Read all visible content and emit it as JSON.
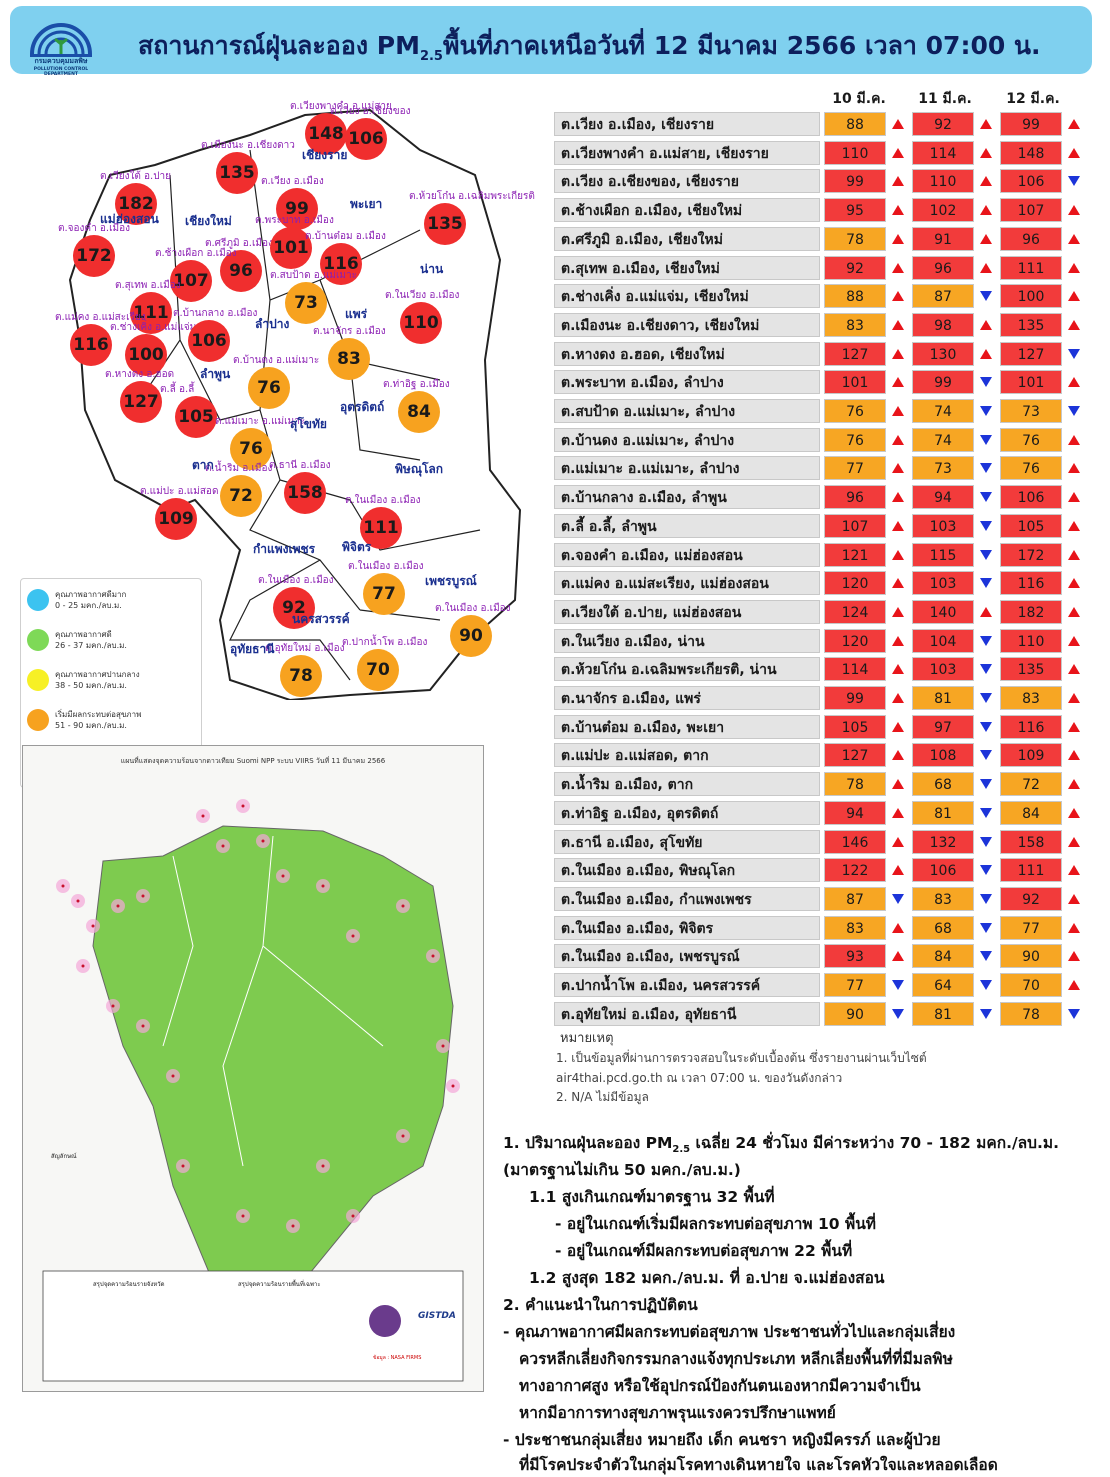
{
  "header": {
    "title_pre": "สถานการณ์ฝุ่นละออง PM",
    "title_sub": "2.5",
    "title_post": "พื้นที่ภาคเหนือวันที่ 12 มีนาคม 2566 เวลา 07:00 น.",
    "agency": "กรมควบคุมมลพิษ",
    "agency_en": "POLLUTION CONTROL DEPARTMENT"
  },
  "columns": [
    "10 มี.ค.",
    "11 มี.ค.",
    "12 มี.ค."
  ],
  "colors": {
    "red": "#f23b3b",
    "orange": "#f7a623",
    "up": "#e8141a",
    "down": "#1c34d9",
    "header": "#7fd0ef"
  },
  "stations": [
    {
      "name": "ต.เวียง อ.เมือง, เชียงราย",
      "d10": 88,
      "a10": "up",
      "d11": 92,
      "a11": "up",
      "d12": 99,
      "a12": "up"
    },
    {
      "name": "ต.เวียงพางคำ อ.แม่สาย, เชียงราย",
      "d10": 110,
      "a10": "up",
      "d11": 114,
      "a11": "up",
      "d12": 148,
      "a12": "up"
    },
    {
      "name": "ต.เวียง อ.เชียงของ, เชียงราย",
      "d10": 99,
      "a10": "up",
      "d11": 110,
      "a11": "up",
      "d12": 106,
      "a12": "down"
    },
    {
      "name": "ต.ช้างเผือก อ.เมือง, เชียงใหม่",
      "d10": 95,
      "a10": "up",
      "d11": 102,
      "a11": "up",
      "d12": 107,
      "a12": "up"
    },
    {
      "name": "ต.ศรีภูมิ อ.เมือง, เชียงใหม่",
      "d10": 78,
      "a10": "up",
      "d11": 91,
      "a11": "up",
      "d12": 96,
      "a12": "up"
    },
    {
      "name": "ต.สุเทพ อ.เมือง, เชียงใหม่",
      "d10": 92,
      "a10": "up",
      "d11": 96,
      "a11": "up",
      "d12": 111,
      "a12": "up"
    },
    {
      "name": "ต.ช่างเคิ่ง อ.แม่แจ่ม, เชียงใหม่",
      "d10": 88,
      "a10": "up",
      "d11": 87,
      "a11": "down",
      "d12": 100,
      "a12": "up"
    },
    {
      "name": "ต.เมืองนะ อ.เชียงดาว, เชียงใหม่",
      "d10": 83,
      "a10": "up",
      "d11": 98,
      "a11": "up",
      "d12": 135,
      "a12": "up"
    },
    {
      "name": "ต.หางดง อ.ฮอด, เชียงใหม่",
      "d10": 127,
      "a10": "up",
      "d11": 130,
      "a11": "up",
      "d12": 127,
      "a12": "down"
    },
    {
      "name": "ต.พระบาท อ.เมือง, ลำปาง",
      "d10": 101,
      "a10": "up",
      "d11": 99,
      "a11": "down",
      "d12": 101,
      "a12": "up"
    },
    {
      "name": "ต.สบป้าด อ.แม่เมาะ, ลำปาง",
      "d10": 76,
      "a10": "up",
      "d11": 74,
      "a11": "down",
      "d12": 73,
      "a12": "down"
    },
    {
      "name": "ต.บ้านดง อ.แม่เมาะ, ลำปาง",
      "d10": 76,
      "a10": "up",
      "d11": 74,
      "a11": "down",
      "d12": 76,
      "a12": "up"
    },
    {
      "name": "ต.แม่เมาะ อ.แม่เมาะ, ลำปาง",
      "d10": 77,
      "a10": "up",
      "d11": 73,
      "a11": "down",
      "d12": 76,
      "a12": "up"
    },
    {
      "name": "ต.บ้านกลาง อ.เมือง, ลำพูน",
      "d10": 96,
      "a10": "up",
      "d11": 94,
      "a11": "down",
      "d12": 106,
      "a12": "up"
    },
    {
      "name": "ต.ลี้ อ.ลี้, ลำพูน",
      "d10": 107,
      "a10": "up",
      "d11": 103,
      "a11": "down",
      "d12": 105,
      "a12": "up"
    },
    {
      "name": "ต.จองคำ อ.เมือง, แม่ฮ่องสอน",
      "d10": 121,
      "a10": "up",
      "d11": 115,
      "a11": "down",
      "d12": 172,
      "a12": "up"
    },
    {
      "name": "ต.แม่คง อ.แม่สะเรียง, แม่ฮ่องสอน",
      "d10": 120,
      "a10": "up",
      "d11": 103,
      "a11": "down",
      "d12": 116,
      "a12": "up"
    },
    {
      "name": "ต.เวียงใต้ อ.ปาย, แม่ฮ่องสอน",
      "d10": 124,
      "a10": "up",
      "d11": 140,
      "a11": "up",
      "d12": 182,
      "a12": "up"
    },
    {
      "name": "ต.ในเวียง อ.เมือง, น่าน",
      "d10": 120,
      "a10": "up",
      "d11": 104,
      "a11": "down",
      "d12": 110,
      "a12": "up"
    },
    {
      "name": "ต.ห้วยโก๋น อ.เฉลิมพระเกียรติ, น่าน",
      "d10": 114,
      "a10": "up",
      "d11": 103,
      "a11": "down",
      "d12": 135,
      "a12": "up"
    },
    {
      "name": "ต.นาจักร อ.เมือง, แพร่",
      "d10": 99,
      "a10": "up",
      "d11": 81,
      "a11": "down",
      "d12": 83,
      "a12": "up"
    },
    {
      "name": "ต.บ้านต๋อม อ.เมือง, พะเยา",
      "d10": 105,
      "a10": "up",
      "d11": 97,
      "a11": "down",
      "d12": 116,
      "a12": "up"
    },
    {
      "name": "ต.แม่ปะ อ.แม่สอด, ตาก",
      "d10": 127,
      "a10": "up",
      "d11": 108,
      "a11": "down",
      "d12": 109,
      "a12": "up"
    },
    {
      "name": "ต.น้ำริม อ.เมือง, ตาก",
      "d10": 78,
      "a10": "up",
      "d11": 68,
      "a11": "down",
      "d12": 72,
      "a12": "up"
    },
    {
      "name": "ต.ท่าอิฐ อ.เมือง, อุตรดิตถ์",
      "d10": 94,
      "a10": "up",
      "d11": 81,
      "a11": "down",
      "d12": 84,
      "a12": "up"
    },
    {
      "name": "ต.ธานี อ.เมือง, สุโขทัย",
      "d10": 146,
      "a10": "up",
      "d11": 132,
      "a11": "down",
      "d12": 158,
      "a12": "up"
    },
    {
      "name": "ต.ในเมือง อ.เมือง, พิษณุโลก",
      "d10": 122,
      "a10": "up",
      "d11": 106,
      "a11": "down",
      "d12": 111,
      "a12": "up"
    },
    {
      "name": "ต.ในเมือง อ.เมือง, กำแพงเพชร",
      "d10": 87,
      "a10": "down",
      "d11": 83,
      "a11": "down",
      "d12": 92,
      "a12": "up"
    },
    {
      "name": "ต.ในเมือง อ.เมือง, พิจิตร",
      "d10": 83,
      "a10": "up",
      "d11": 68,
      "a11": "down",
      "d12": 77,
      "a12": "up"
    },
    {
      "name": "ต.ในเมือง อ.เมือง, เพชรบูรณ์",
      "d10": 93,
      "a10": "up",
      "d11": 84,
      "a11": "down",
      "d12": 90,
      "a12": "up"
    },
    {
      "name": "ต.ปากน้ำโพ อ.เมือง, นครสวรรค์",
      "d10": 77,
      "a10": "down",
      "d11": 64,
      "a11": "down",
      "d12": 70,
      "a12": "up"
    },
    {
      "name": "ต.อุทัยใหม่ อ.เมือง, อุทัยธานี",
      "d10": 90,
      "a10": "down",
      "d11": 81,
      "a11": "down",
      "d12": 78,
      "a12": "down"
    }
  ],
  "notes": {
    "title": "หมายเหตุ",
    "n1a": "1. เป็นข้อมูลที่ผ่านการตรวจสอบในระดับเบื้องต้น ซึ่งรายงานผ่านเว็บไซต์",
    "n1b": "air4thai.pcd.go.th ณ เวลา 07:00 น. ของวันดังกล่าว",
    "n2": "2. N/A ไม่มีข้อมูล"
  },
  "summary": {
    "s1_pre": "1. ปริมาณฝุ่นละออง PM",
    "s1_sub": "2.5",
    "s1_post": " เฉลี่ย 24 ชั่วโมง มีค่าระหว่าง 70 - 182 มคก./ลบ.ม.",
    "s1b": "(มาตรฐานไม่เกิน 50 มคก./ลบ.ม.)",
    "s11": "1.1 สูงเกินเกณฑ์มาตรฐาน 32 พื้นที่",
    "s11a": "- อยู่ในเกณฑ์เริ่มมีผลกระทบต่อสุขภาพ 10 พื้นที่",
    "s11b": "- อยู่ในเกณฑ์มีผลกระทบต่อสุขภาพ 22 พื้นที่",
    "s12": "1.2 สูงสุด 182  มคก./ลบ.ม. ที่ อ.ปาย จ.แม่ฮ่องสอน",
    "s2": "2. คำแนะนำในการปฏิบัติตน",
    "s2a1": "- คุณภาพอากาศมีผลกระทบต่อสุขภาพ ประชาชนทั่วไปและกลุ่มเสี่ยง",
    "s2a2": "ควรหลีกเลี่ยงกิจกรรมกลางแจ้งทุกประเภท หลีกเลี่ยงพื้นที่ที่มีมลพิษ",
    "s2a3": "ทางอากาศสูง หรือใช้อุปกรณ์ป้องกันตนเองหากมีความจำเป็น",
    "s2a4": "หากมีอาการทางสุขภาพรุนแรงควรปรึกษาแพทย์",
    "s2b1": "- ประชาชนกลุ่มเสี่ยง หมายถึง เด็ก คนชรา หญิงมีครรภ์ และผู้ป่วย",
    "s2b2": "ที่มีโรคประจำตัวในกลุ่มโรคทางเดินหายใจ และโรคหัวใจและหลอดเลือด"
  },
  "legend": [
    {
      "color": "#3cc3f0",
      "l1": "คุณภาพอากาศดีมาก",
      "l2": "0 - 25 มคก./ลบ.ม."
    },
    {
      "color": "#7ed957",
      "l1": "คุณภาพอากาศดี",
      "l2": "26 - 37 มคก./ลบ.ม."
    },
    {
      "color": "#f7f025",
      "l1": "คุณภาพอากาศปานกลาง",
      "l2": "38 - 50 มคก./ลบ.ม."
    },
    {
      "color": "#f7a21f",
      "l1": "เริ่มมีผลกระทบต่อสุขภาพ",
      "l2": "51 - 90 มคก./ลบ.ม."
    },
    {
      "color": "#f02e2e",
      "l1": "มีผลกระทบต่อสุขภาพ",
      "l2": "มากกว่า 90 มคก./ลบ.ม."
    }
  ],
  "map": {
    "provinces": [
      "เชียงราย",
      "แม่ฮ่องสอน",
      "เชียงใหม่",
      "พะเยา",
      "น่าน",
      "ลำปาง",
      "แพร่",
      "ลำพูน",
      "อุตรดิตถ์",
      "สุโขทัย",
      "ตาก",
      "พิษณุโลก",
      "กำแพงเพชร",
      "พิจิตร",
      "เพชรบูรณ์",
      "นครสวรรค์",
      "อุทัยธานี"
    ],
    "bubbles": [
      {
        "v": 148,
        "c": "red",
        "label": "ต.เวียงพางคำ อ.แม่สาย"
      },
      {
        "v": 106,
        "c": "red",
        "label": "ต.เวียง อ.เชียงของ"
      },
      {
        "v": 135,
        "c": "red",
        "label": "ต.เมืองนะ อ.เชียงดาว"
      },
      {
        "v": 99,
        "c": "red",
        "label": "ต.เวียง อ.เมือง"
      },
      {
        "v": 182,
        "c": "red",
        "label": "ต.เวียงใต้ อ.ปาย"
      },
      {
        "v": 135,
        "c": "red",
        "label": "ต.ห้วยโก๋น อ.เฉลิมพระเกียรติ"
      },
      {
        "v": 96,
        "c": "red",
        "label": "ต.ศรีภูมิ อ.เมือง"
      },
      {
        "v": 101,
        "c": "red",
        "label": "ต.พระบาท อ.เมือง"
      },
      {
        "v": 116,
        "c": "red",
        "label": "ต.บ้านต๋อม อ.เมือง"
      },
      {
        "v": 172,
        "c": "red",
        "label": "ต.จองคำ อ.เมือง"
      },
      {
        "v": 107,
        "c": "red",
        "label": "ต.ช้างเผือก อ.เมือง"
      },
      {
        "v": 111,
        "c": "red",
        "label": "ต.สุเทพ อ.เมือง"
      },
      {
        "v": 73,
        "c": "orange",
        "label": "ต.สบป้าด อ.แม่เมาะ"
      },
      {
        "v": 110,
        "c": "red",
        "label": "ต.ในเวียง อ.เมือง"
      },
      {
        "v": 116,
        "c": "red",
        "label": "ต.แม่คง อ.แม่สะเรียง"
      },
      {
        "v": 100,
        "c": "red",
        "label": "ต.ช่างเคิ่ง อ.แม่แจ่ม"
      },
      {
        "v": 106,
        "c": "red",
        "label": "ต.บ้านกลาง อ.เมือง"
      },
      {
        "v": 76,
        "c": "orange",
        "label": "ต.บ้านดง อ.แม่เมาะ"
      },
      {
        "v": 83,
        "c": "orange",
        "label": "ต.นาจักร อ.เมือง"
      },
      {
        "v": 127,
        "c": "red",
        "label": "ต.หางดง อ.ฮอด"
      },
      {
        "v": 105,
        "c": "red",
        "label": "ต.ลี้ อ.ลี้"
      },
      {
        "v": 76,
        "c": "orange",
        "label": "ต.แม่เมาะ อ.แม่เมาะ"
      },
      {
        "v": 84,
        "c": "orange",
        "label": "ต.ท่าอิฐ อ.เมือง"
      },
      {
        "v": 158,
        "c": "red",
        "label": "ต.ธานี อ.เมือง"
      },
      {
        "v": 72,
        "c": "orange",
        "label": "ต.น้ำริม อ.เมือง"
      },
      {
        "v": 109,
        "c": "red",
        "label": "ต.แม่ปะ อ.แม่สอด"
      },
      {
        "v": 111,
        "c": "red",
        "label": "ต.ในเมือง อ.เมือง"
      },
      {
        "v": 92,
        "c": "red",
        "label": "ต.ในเมือง อ.เมือง"
      },
      {
        "v": 77,
        "c": "orange",
        "label": "ต.ในเมือง อ.เมือง"
      },
      {
        "v": 90,
        "c": "orange",
        "label": "ต.ในเมือง อ.เมือง"
      },
      {
        "v": 78,
        "c": "orange",
        "label": "ต.อุทัยใหม่ อ.เมือง"
      },
      {
        "v": 70,
        "c": "orange",
        "label": "ต.ปากน้ำโพ อ.เมือง"
      }
    ]
  },
  "satellite": {
    "title": "แผนที่แสดงจุดความร้อนจากดาวเทียม Suomi NPP ระบบ VIIRS  วันที่ 11 มีนาคม 2566",
    "legend_title": "สัญลักษณ์",
    "summary_left": "สรุปจุดความร้อนรายจังหวัด",
    "summary_right": "สรุปจุดความร้อนรายพื้นที่เฉพาะ",
    "source": "ข้อมูล : NASA FIRMS",
    "gistda": "GISTDA"
  }
}
